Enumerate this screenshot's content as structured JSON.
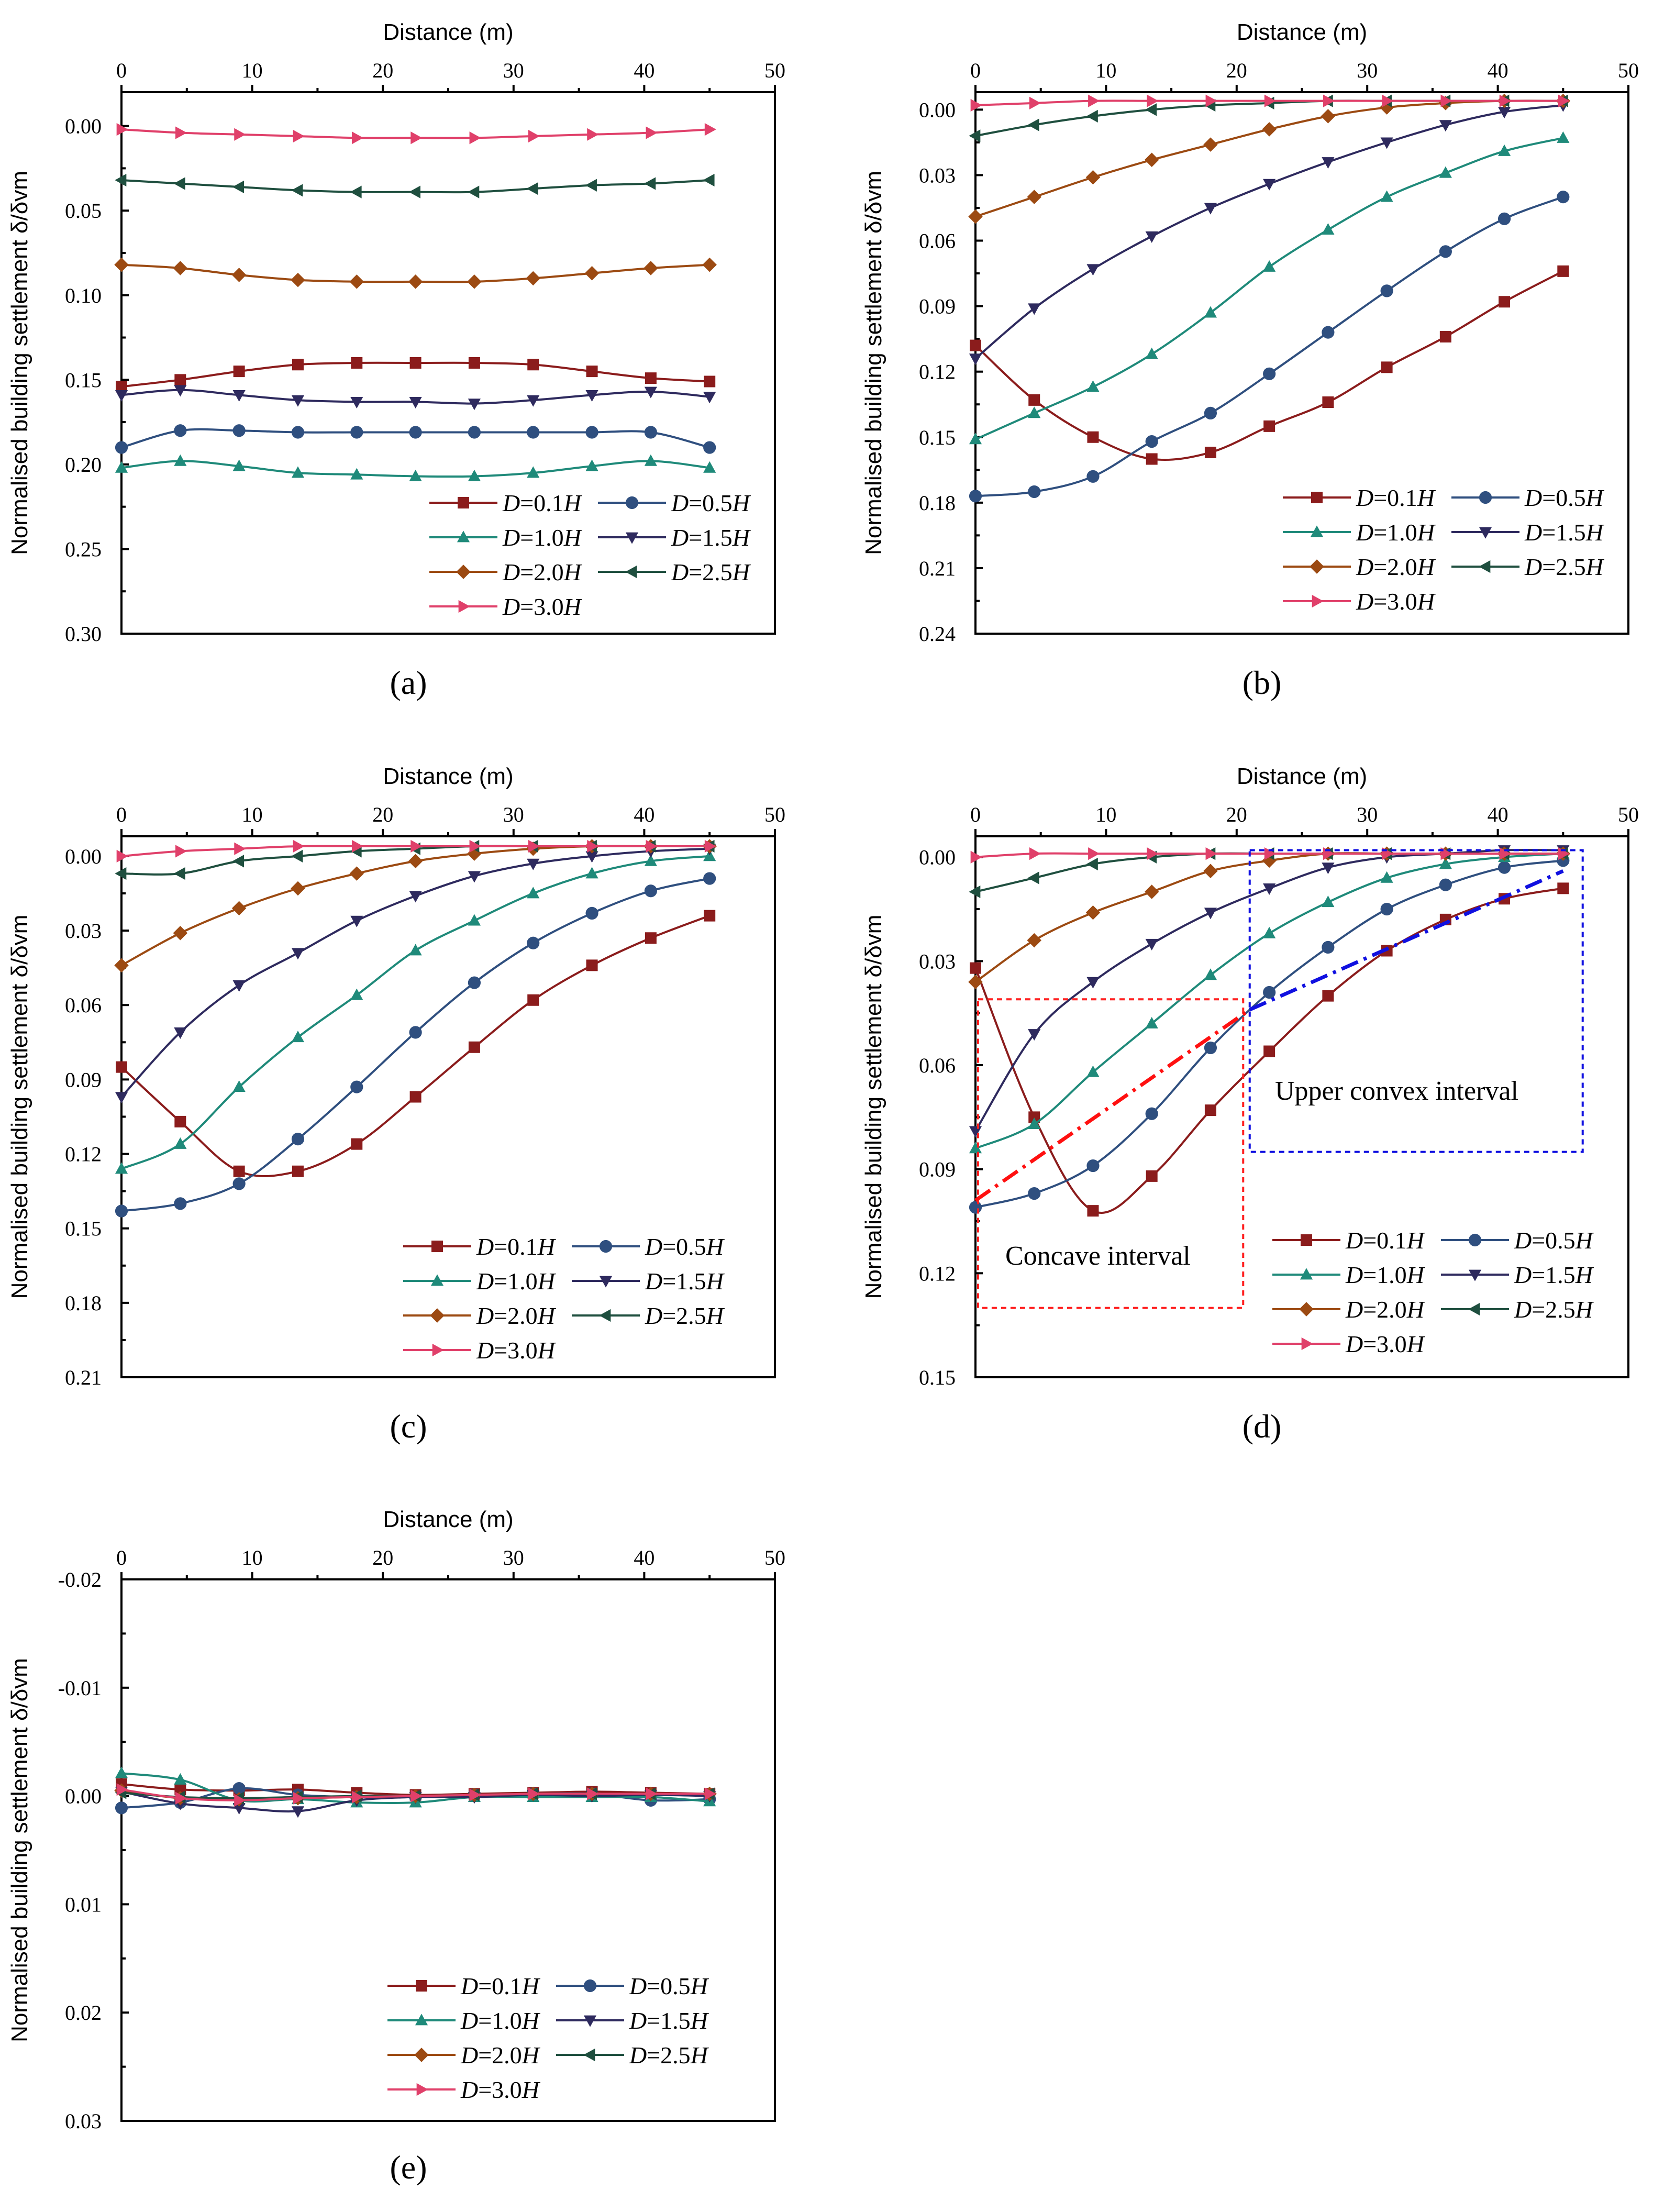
{
  "colors": {
    "D=0.1H": "#8b1c1c",
    "D=0.5H": "#2f4f7f",
    "D=1.0H": "#1f8a7a",
    "D=1.5H": "#2e2a5e",
    "D=2.0H": "#9c4a12",
    "D=2.5H": "#1f4f3f",
    "D=3.0H": "#e0406a"
  },
  "markers": {
    "D=0.1H": "square",
    "D=0.5H": "circle",
    "D=1.0H": "triangle-up",
    "D=1.5H": "triangle-down",
    "D=2.0H": "diamond",
    "D=2.5H": "triangle-left",
    "D=3.0H": "triangle-right"
  },
  "legend_labels": [
    {
      "key": "D=0.1H",
      "prefix": "D",
      "mid": "=0.1",
      "suffix": "H"
    },
    {
      "key": "D=0.5H",
      "prefix": "D",
      "mid": "=0.5",
      "suffix": "H"
    },
    {
      "key": "D=1.0H",
      "prefix": "D",
      "mid": "=1.0",
      "suffix": "H"
    },
    {
      "key": "D=1.5H",
      "prefix": "D",
      "mid": "=1.5",
      "suffix": "H"
    },
    {
      "key": "D=2.0H",
      "prefix": "D",
      "mid": "=2.0",
      "suffix": "H"
    },
    {
      "key": "D=2.5H",
      "prefix": "D",
      "mid": "=2.5",
      "suffix": "H"
    },
    {
      "key": "D=3.0H",
      "prefix": "D",
      "mid": "=3.0",
      "suffix": "H"
    }
  ],
  "chart_data": [
    {
      "type": "line",
      "panel": "(a)",
      "xlabel": "Distance (m)",
      "ylabel": "Normalised building settlement δ/δvm",
      "xlim": [
        0,
        50
      ],
      "ylim": [
        -0.02,
        0.3
      ],
      "y_inverted": true,
      "xticks": [
        0,
        10,
        20,
        30,
        40,
        50
      ],
      "yticks": [
        0.0,
        0.05,
        0.1,
        0.15,
        0.2,
        0.25,
        0.3
      ],
      "ytick_labels": [
        "0.00",
        "0.05",
        "0.10",
        "0.15",
        "0.20",
        "0.25",
        "0.30"
      ],
      "x": [
        0,
        4.5,
        9,
        13.5,
        18,
        22.5,
        27,
        31.5,
        36,
        40.5,
        45
      ],
      "series": [
        {
          "name": "D=0.1H",
          "values": [
            0.154,
            0.15,
            0.145,
            0.141,
            0.14,
            0.14,
            0.14,
            0.141,
            0.145,
            0.149,
            0.151
          ]
        },
        {
          "name": "D=0.5H",
          "values": [
            0.19,
            0.18,
            0.18,
            0.181,
            0.181,
            0.181,
            0.181,
            0.181,
            0.181,
            0.181,
            0.19
          ]
        },
        {
          "name": "D=1.0H",
          "values": [
            0.202,
            0.198,
            0.201,
            0.205,
            0.206,
            0.207,
            0.207,
            0.205,
            0.201,
            0.198,
            0.202
          ]
        },
        {
          "name": "D=1.5H",
          "values": [
            0.159,
            0.156,
            0.159,
            0.162,
            0.163,
            0.163,
            0.164,
            0.162,
            0.159,
            0.157,
            0.16
          ]
        },
        {
          "name": "D=2.0H",
          "values": [
            0.082,
            0.084,
            0.088,
            0.091,
            0.092,
            0.092,
            0.092,
            0.09,
            0.087,
            0.084,
            0.082
          ]
        },
        {
          "name": "D=2.5H",
          "values": [
            0.032,
            0.034,
            0.036,
            0.038,
            0.039,
            0.039,
            0.039,
            0.037,
            0.035,
            0.034,
            0.032
          ]
        },
        {
          "name": "D=3.0H",
          "values": [
            0.002,
            0.004,
            0.005,
            0.006,
            0.007,
            0.007,
            0.007,
            0.006,
            0.005,
            0.004,
            0.002
          ]
        }
      ]
    },
    {
      "type": "line",
      "panel": "(b)",
      "xlabel": "Distance (m)",
      "ylabel": "Normalised building settlement δ/δvm",
      "xlim": [
        0,
        50
      ],
      "ylim": [
        -0.008,
        0.24
      ],
      "y_inverted": true,
      "xticks": [
        0,
        10,
        20,
        30,
        40,
        50
      ],
      "yticks": [
        0.0,
        0.03,
        0.06,
        0.09,
        0.12,
        0.15,
        0.18,
        0.21,
        0.24
      ],
      "ytick_labels": [
        "0.00",
        "0.03",
        "0.06",
        "0.09",
        "0.12",
        "0.15",
        "0.18",
        "0.21",
        "0.24"
      ],
      "x": [
        0,
        4.5,
        9,
        13.5,
        18,
        22.5,
        27,
        31.5,
        36,
        40.5,
        45
      ],
      "series": [
        {
          "name": "D=0.1H",
          "values": [
            0.108,
            0.133,
            0.15,
            0.16,
            0.157,
            0.145,
            0.134,
            0.118,
            0.104,
            0.088,
            0.074
          ]
        },
        {
          "name": "D=0.5H",
          "values": [
            0.177,
            0.175,
            0.168,
            0.152,
            0.139,
            0.121,
            0.102,
            0.083,
            0.065,
            0.05,
            0.04
          ]
        },
        {
          "name": "D=1.0H",
          "values": [
            0.151,
            0.139,
            0.127,
            0.112,
            0.093,
            0.072,
            0.055,
            0.04,
            0.029,
            0.019,
            0.013
          ]
        },
        {
          "name": "D=1.5H",
          "values": [
            0.114,
            0.091,
            0.073,
            0.058,
            0.045,
            0.034,
            0.024,
            0.015,
            0.007,
            0.001,
            -0.002
          ]
        },
        {
          "name": "D=2.0H",
          "values": [
            0.049,
            0.04,
            0.031,
            0.023,
            0.016,
            0.009,
            0.003,
            -0.001,
            -0.003,
            -0.004,
            -0.004
          ]
        },
        {
          "name": "D=2.5H",
          "values": [
            0.012,
            0.007,
            0.003,
            0.0,
            -0.002,
            -0.003,
            -0.004,
            -0.004,
            -0.004,
            -0.004,
            -0.004
          ]
        },
        {
          "name": "D=3.0H",
          "values": [
            -0.002,
            -0.003,
            -0.004,
            -0.004,
            -0.004,
            -0.004,
            -0.004,
            -0.004,
            -0.004,
            -0.004,
            -0.004
          ]
        }
      ]
    },
    {
      "type": "line",
      "panel": "(c)",
      "xlabel": "Distance (m)",
      "ylabel": "Normalised building settlement δ/δvm",
      "xlim": [
        0,
        50
      ],
      "ylim": [
        -0.008,
        0.21
      ],
      "y_inverted": true,
      "xticks": [
        0,
        10,
        20,
        30,
        40,
        50
      ],
      "yticks": [
        0.0,
        0.03,
        0.06,
        0.09,
        0.12,
        0.15,
        0.18,
        0.21
      ],
      "ytick_labels": [
        "0.00",
        "0.03",
        "0.06",
        "0.09",
        "0.12",
        "0.15",
        "0.18",
        "0.21"
      ],
      "x": [
        0,
        4.5,
        9,
        13.5,
        18,
        22.5,
        27,
        31.5,
        36,
        40.5,
        45
      ],
      "series": [
        {
          "name": "D=0.1H",
          "values": [
            0.085,
            0.107,
            0.127,
            0.127,
            0.116,
            0.097,
            0.077,
            0.058,
            0.044,
            0.033,
            0.024
          ]
        },
        {
          "name": "D=0.5H",
          "values": [
            0.143,
            0.14,
            0.132,
            0.114,
            0.093,
            0.071,
            0.051,
            0.035,
            0.023,
            0.014,
            0.009
          ]
        },
        {
          "name": "D=1.0H",
          "values": [
            0.126,
            0.116,
            0.093,
            0.073,
            0.056,
            0.038,
            0.026,
            0.015,
            0.007,
            0.002,
            0.0
          ]
        },
        {
          "name": "D=1.5H",
          "values": [
            0.097,
            0.071,
            0.052,
            0.039,
            0.026,
            0.016,
            0.008,
            0.003,
            0.0,
            -0.002,
            -0.003
          ]
        },
        {
          "name": "D=2.0H",
          "values": [
            0.044,
            0.031,
            0.021,
            0.013,
            0.007,
            0.002,
            -0.001,
            -0.003,
            -0.004,
            -0.004,
            -0.004
          ]
        },
        {
          "name": "D=2.5H",
          "values": [
            0.007,
            0.007,
            0.002,
            0.0,
            -0.002,
            -0.003,
            -0.004,
            -0.004,
            -0.004,
            -0.004,
            -0.004
          ]
        },
        {
          "name": "D=3.0H",
          "values": [
            0.0,
            -0.002,
            -0.003,
            -0.004,
            -0.004,
            -0.004,
            -0.004,
            -0.004,
            -0.004,
            -0.004,
            -0.004
          ]
        }
      ]
    },
    {
      "type": "line",
      "panel": "(d)",
      "xlabel": "Distance (m)",
      "ylabel": "Normalised building settlement δ/δvm",
      "xlim": [
        0,
        50
      ],
      "ylim": [
        -0.006,
        0.15
      ],
      "y_inverted": true,
      "xticks": [
        0,
        10,
        20,
        30,
        40,
        50
      ],
      "yticks": [
        0.0,
        0.03,
        0.06,
        0.09,
        0.12,
        0.15
      ],
      "ytick_labels": [
        "0.00",
        "0.03",
        "0.06",
        "0.09",
        "0.12",
        "0.15"
      ],
      "x": [
        0,
        4.5,
        9,
        13.5,
        18,
        22.5,
        27,
        31.5,
        36,
        40.5,
        45
      ],
      "series": [
        {
          "name": "D=0.1H",
          "values": [
            0.032,
            0.075,
            0.102,
            0.092,
            0.073,
            0.056,
            0.04,
            0.027,
            0.018,
            0.012,
            0.009
          ]
        },
        {
          "name": "D=0.5H",
          "values": [
            0.101,
            0.097,
            0.089,
            0.074,
            0.055,
            0.039,
            0.026,
            0.015,
            0.008,
            0.003,
            0.001
          ]
        },
        {
          "name": "D=1.0H",
          "values": [
            0.084,
            0.077,
            0.062,
            0.048,
            0.034,
            0.022,
            0.013,
            0.006,
            0.002,
            0.0,
            -0.001
          ]
        },
        {
          "name": "D=1.5H",
          "values": [
            0.079,
            0.051,
            0.036,
            0.025,
            0.016,
            0.009,
            0.003,
            0.0,
            -0.001,
            -0.002,
            -0.002
          ]
        },
        {
          "name": "D=2.0H",
          "values": [
            0.036,
            0.024,
            0.016,
            0.01,
            0.004,
            0.001,
            -0.001,
            -0.001,
            -0.001,
            -0.001,
            -0.001
          ]
        },
        {
          "name": "D=2.5H",
          "values": [
            0.01,
            0.006,
            0.002,
            0.0,
            -0.001,
            -0.001,
            -0.001,
            -0.001,
            -0.001,
            -0.001,
            -0.001
          ]
        },
        {
          "name": "D=3.0H",
          "values": [
            0.0,
            -0.001,
            -0.001,
            -0.001,
            -0.001,
            -0.001,
            -0.001,
            -0.001,
            -0.001,
            -0.001,
            -0.001
          ]
        }
      ],
      "annotations": {
        "concave_label": "Concave interval",
        "convex_label": "Upper convex interval",
        "concave_box": {
          "x0": 0.2,
          "x1": 20.5,
          "y0": 0.041,
          "y1": 0.13
        },
        "convex_box": {
          "x0": 21,
          "x1": 46.5,
          "y0": -0.002,
          "y1": 0.085
        },
        "red_trend": {
          "x": [
            0,
            21
          ],
          "y": [
            0.099,
            0.044
          ]
        },
        "blue_trend": {
          "x": [
            21,
            45
          ],
          "y": [
            0.044,
            0.004
          ]
        }
      }
    },
    {
      "type": "line",
      "panel": "(e)",
      "xlabel": "Distance (m)",
      "ylabel": "Normalised building settlement δ/δvm",
      "xlim": [
        0,
        50
      ],
      "ylim": [
        -0.02,
        0.03
      ],
      "y_inverted": true,
      "xticks": [
        0,
        10,
        20,
        30,
        40,
        50
      ],
      "yticks": [
        -0.02,
        -0.01,
        0.0,
        0.01,
        0.02,
        0.03
      ],
      "ytick_labels": [
        "-0.02",
        "-0.01",
        "0.00",
        "0.01",
        "0.02",
        "0.03"
      ],
      "x": [
        0,
        4.5,
        9,
        13.5,
        18,
        22.5,
        27,
        31.5,
        36,
        40.5,
        45
      ],
      "series": [
        {
          "name": "D=0.1H",
          "values": [
            -0.0011,
            -0.0006,
            -0.0005,
            -0.0006,
            -0.0003,
            -0.0001,
            -0.0002,
            -0.0003,
            -0.0004,
            -0.0003,
            -0.0002
          ]
        },
        {
          "name": "D=0.5H",
          "values": [
            0.0011,
            0.0006,
            -0.0007,
            -0.0001,
            0.0001,
            0.0001,
            -0.0001,
            -0.0002,
            -0.0002,
            0.0004,
            0.0003
          ]
        },
        {
          "name": "D=1.0H",
          "values": [
            -0.0021,
            -0.0015,
            0.0004,
            0.0003,
            0.0006,
            0.0006,
            0.0001,
            0.0001,
            0.0001,
            0.0001,
            0.0005
          ]
        },
        {
          "name": "D=1.5H",
          "values": [
            -0.0004,
            0.0007,
            0.0011,
            0.0014,
            0.0004,
            0.0001,
            0.0001,
            -0.0001,
            0.0,
            -0.0001,
            0.0
          ]
        },
        {
          "name": "D=2.0H",
          "values": [
            -0.0005,
            0.0002,
            0.0003,
            0.0002,
            0.0001,
            0.0,
            -0.0001,
            -0.0002,
            -0.0002,
            -0.0002,
            -0.0002
          ]
        },
        {
          "name": "D=2.5H",
          "values": [
            -0.0003,
            0.0001,
            0.0002,
            0.0001,
            0.0,
            0.0,
            -0.0001,
            -0.0002,
            -0.0002,
            -0.0002,
            -0.0002
          ]
        },
        {
          "name": "D=3.0H",
          "values": [
            -0.0006,
            0.0002,
            0.0004,
            0.0002,
            0.0001,
            0.0,
            -0.0001,
            -0.0002,
            -0.0002,
            -0.0002,
            -0.0002
          ]
        }
      ]
    }
  ]
}
